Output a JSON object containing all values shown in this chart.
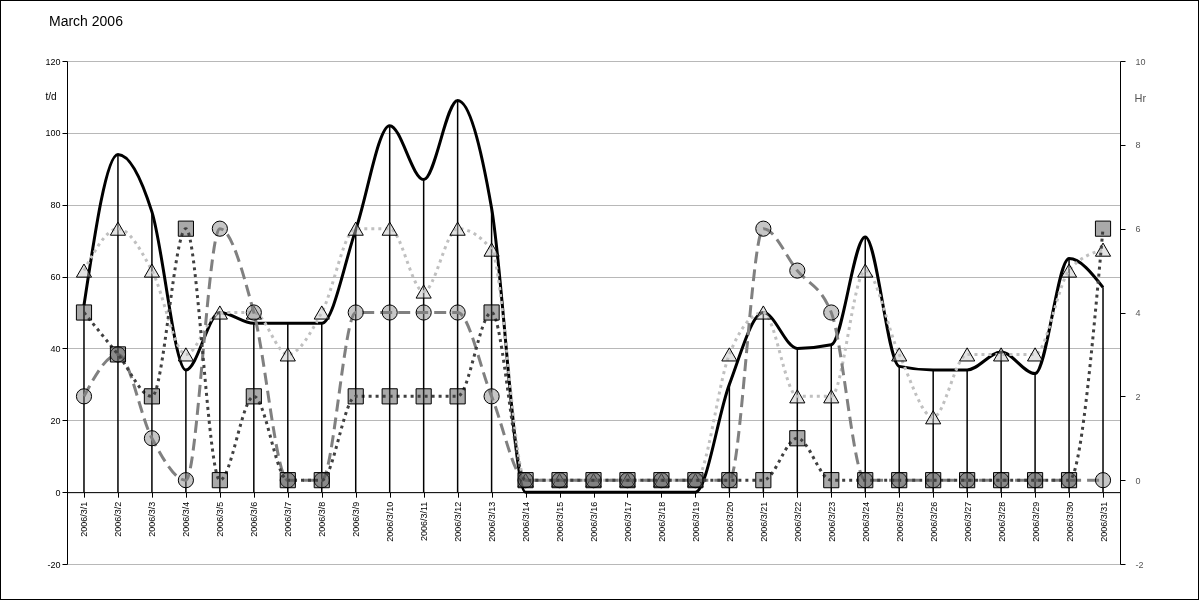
{
  "chart_data": {
    "type": "line",
    "title": "March 2006",
    "ylabel": "t/d",
    "y2label": "Hr",
    "categories": [
      "2006/3/1",
      "2006/3/2",
      "2006/3/3",
      "2006/3/4",
      "2006/3/5",
      "2006/3/6",
      "2006/3/7",
      "2006/3/8",
      "2006/3/9",
      "2006/3/10",
      "2006/3/11",
      "2006/3/12",
      "2006/3/13",
      "2006/3/14",
      "2006/3/15",
      "2006/3/16",
      "2006/3/17",
      "2006/3/18",
      "2006/3/19",
      "2006/3/20",
      "2006/3/21",
      "2006/3/22",
      "2006/3/23",
      "2006/3/24",
      "2006/3/25",
      "2006/3/26",
      "2006/3/27",
      "2006/3/28",
      "2006/3/29",
      "2006/3/30",
      "2006/3/31"
    ],
    "ylim": [
      -20,
      120
    ],
    "yticks": [
      -20,
      0,
      20,
      40,
      60,
      80,
      100,
      120
    ],
    "y2lim": [
      -2,
      10
    ],
    "y2ticks": [
      -2,
      0,
      2,
      4,
      6,
      8,
      10
    ],
    "grid": "y",
    "series": [
      {
        "type": "bar",
        "color": "#000000",
        "values": [
          52,
          94,
          78,
          34,
          50,
          47,
          47,
          47,
          73,
          102,
          87,
          109,
          79,
          0,
          0,
          0,
          0,
          0,
          0,
          30,
          50,
          40,
          41,
          71,
          35,
          34,
          34,
          39,
          33,
          65,
          57
        ]
      },
      {
        "color": "#000000",
        "marker": "none",
        "line_style": "solid",
        "values": [
          52,
          94,
          78,
          34,
          50,
          47,
          47,
          47,
          73,
          102,
          87,
          109,
          79,
          0,
          0,
          0,
          0,
          0,
          0,
          30,
          50,
          40,
          41,
          71,
          35,
          34,
          34,
          39,
          33,
          65,
          57
        ]
      },
      {
        "type": "line",
        "axis": "y2",
        "color": "#c0c0c0",
        "marker": "triangle",
        "line_style": "dotted",
        "values": [
          5,
          6,
          5,
          3,
          4,
          4,
          3,
          4,
          6,
          6,
          4.5,
          6,
          5.5,
          0,
          0,
          0,
          0,
          0,
          0,
          3,
          4,
          2,
          2,
          5,
          3,
          1.5,
          3,
          3,
          3,
          5,
          5.5
        ]
      },
      {
        "type": "line",
        "axis": "y2",
        "color": "#808080",
        "marker": "circle",
        "line_style": "dashed",
        "values": [
          2,
          3,
          1,
          0,
          6,
          4,
          0,
          0,
          4,
          4,
          4,
          4,
          2,
          0,
          0,
          0,
          0,
          0,
          0,
          0,
          6,
          5,
          4,
          0,
          0,
          0,
          0,
          0,
          0,
          0,
          0
        ]
      },
      {
        "type": "line",
        "axis": "y2",
        "color": "#404040",
        "marker": "square",
        "line_style": "dotted",
        "values": [
          4,
          3,
          2,
          6,
          0,
          2,
          0,
          0,
          2,
          2,
          2,
          2,
          4,
          0,
          0,
          0,
          0,
          0,
          0,
          0,
          0,
          1,
          0,
          0,
          0,
          0,
          0,
          0,
          0,
          0,
          6
        ]
      }
    ]
  }
}
